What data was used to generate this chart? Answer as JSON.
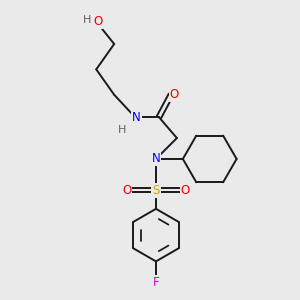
{
  "bg_color": "#eaeaea",
  "bond_color": "#1a1a1a",
  "bond_width": 1.4,
  "atom_colors": {
    "N": "#0000ee",
    "O": "#ee0000",
    "S": "#ccaa00",
    "F": "#dd00dd",
    "H": "#606060",
    "C": "#1a1a1a"
  },
  "font_size": 8.5,
  "fig_size": [
    3.0,
    3.0
  ],
  "dpi": 100
}
